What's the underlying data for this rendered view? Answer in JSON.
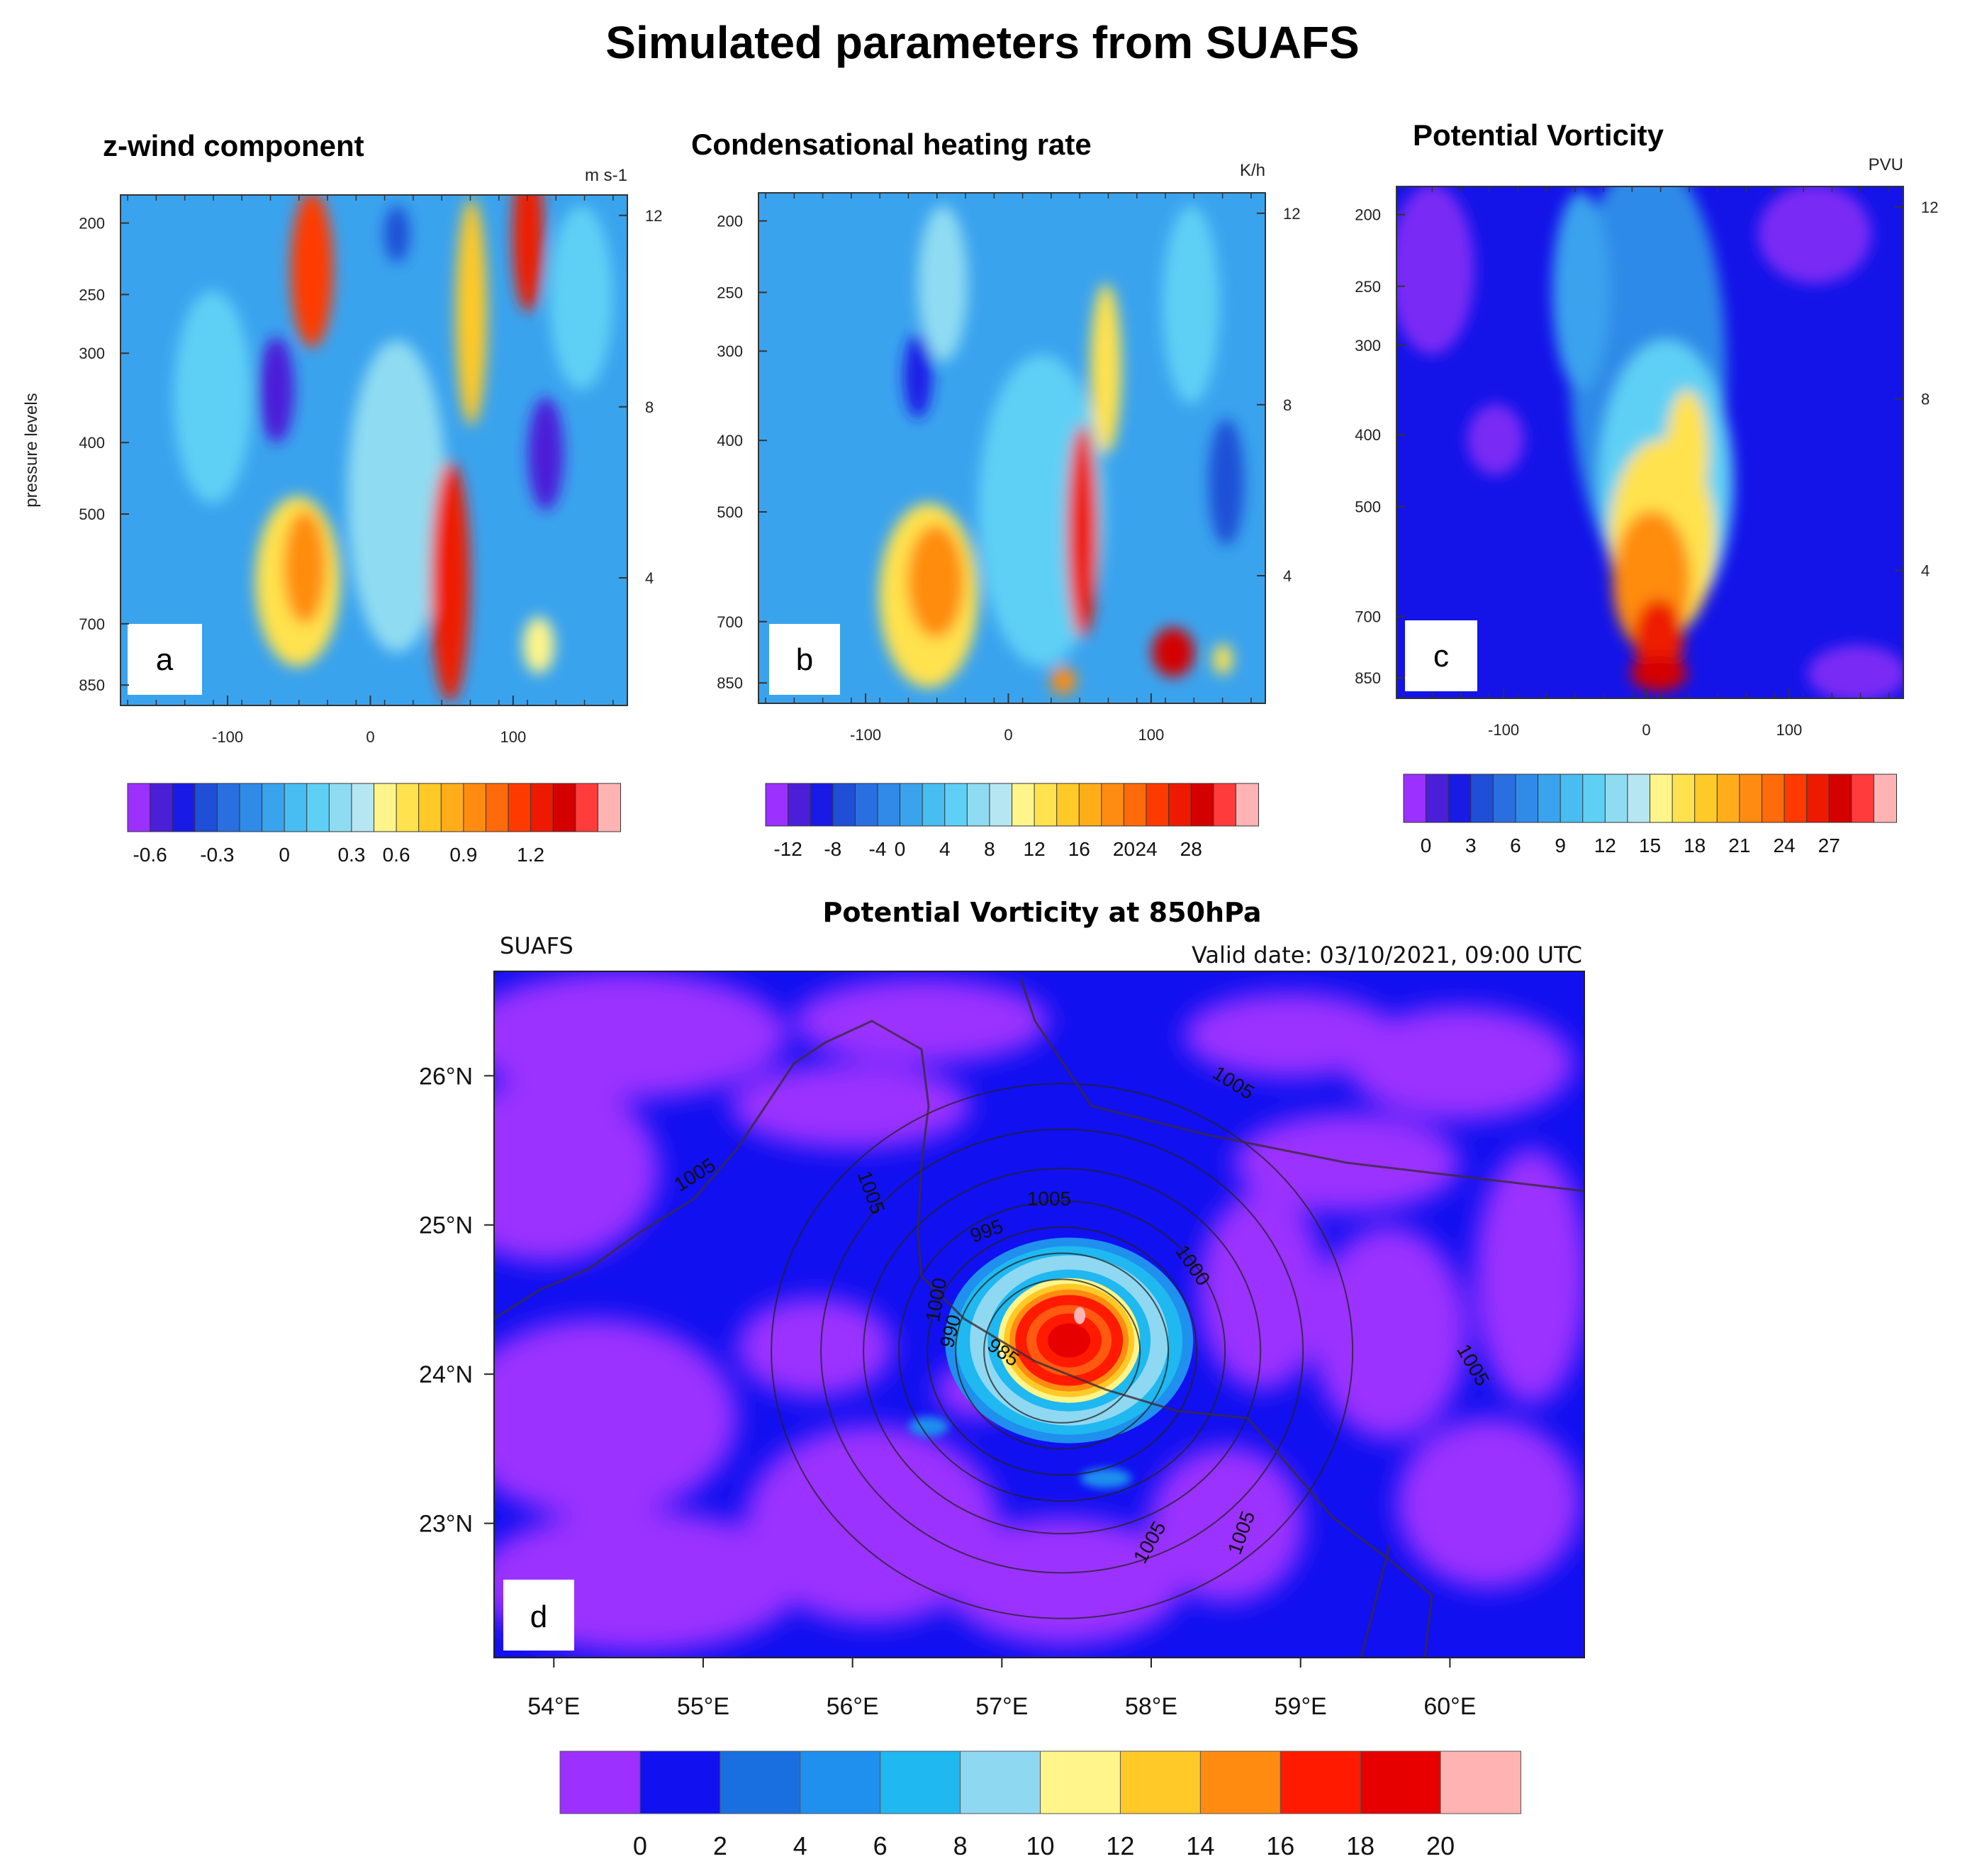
{
  "figure_title": "Simulated parameters from SUAFS",
  "chart_data": [
    {
      "type": "heatmap",
      "panel_letter": "a",
      "title": "z-wind component",
      "units": "m s-1",
      "ylabel": "pressure levels",
      "x_ticks": [
        -100,
        0,
        100
      ],
      "xlim": [
        -175,
        180
      ],
      "y_ticks": [
        "200",
        "250",
        "300",
        "400",
        "500",
        "700",
        "850"
      ],
      "right_ticks": [
        "12",
        "8",
        "4"
      ],
      "colorbar_labels": [
        "-0.6",
        "-0.3",
        "0",
        "0.3",
        "0.6",
        "0.9",
        "1.2"
      ],
      "colorbar_colors": [
        "#9b30ff",
        "#4b1fd8",
        "#1a1ae6",
        "#1e4fd6",
        "#2a6fe0",
        "#2f8ae8",
        "#3aa3ee",
        "#48bdf2",
        "#5fd0f5",
        "#8fdcf2",
        "#b7e6f3",
        "#fff58a",
        "#ffe24d",
        "#ffc928",
        "#ffae1a",
        "#ff8c10",
        "#ff6a0a",
        "#ff3a00",
        "#ee1a00",
        "#d40000",
        "#ff3b3b",
        "#ffb3b3"
      ]
    },
    {
      "type": "heatmap",
      "panel_letter": "b",
      "title": "Condensational  heating rate",
      "units": "K/h",
      "x_ticks": [
        -100,
        0,
        100
      ],
      "xlim": [
        -175,
        180
      ],
      "y_ticks": [
        "200",
        "250",
        "300",
        "400",
        "500",
        "700",
        "850"
      ],
      "right_ticks": [
        "12",
        "8",
        "4"
      ],
      "colorbar_labels": [
        "-12",
        "-8",
        "-4",
        "0",
        "4",
        "8",
        "12",
        "16",
        "20",
        "24",
        "28"
      ],
      "colorbar_colors": [
        "#9b30ff",
        "#4b1fd8",
        "#1a1ae6",
        "#1e4fd6",
        "#2a6fe0",
        "#2f8ae8",
        "#3aa3ee",
        "#48bdf2",
        "#5fd0f5",
        "#8fdcf2",
        "#b7e6f3",
        "#fff58a",
        "#ffe24d",
        "#ffc928",
        "#ffae1a",
        "#ff8c10",
        "#ff6a0a",
        "#ff3a00",
        "#ee1a00",
        "#d40000",
        "#ff3b3b",
        "#ffb3b3"
      ]
    },
    {
      "type": "heatmap",
      "panel_letter": "c",
      "title": "Potential Vorticity",
      "units": "PVU",
      "x_ticks": [
        -100,
        0,
        100
      ],
      "xlim": [
        -175,
        180
      ],
      "y_ticks": [
        "200",
        "250",
        "300",
        "400",
        "500",
        "700",
        "850"
      ],
      "right_ticks": [
        "12",
        "8",
        "4"
      ],
      "colorbar_labels": [
        "0",
        "3",
        "6",
        "9",
        "12",
        "15",
        "18",
        "21",
        "24",
        "27"
      ],
      "colorbar_colors": [
        "#9b30ff",
        "#4b1fd8",
        "#1a1ae6",
        "#1e4fd6",
        "#2a6fe0",
        "#2f8ae8",
        "#3aa3ee",
        "#48bdf2",
        "#5fd0f5",
        "#8fdcf2",
        "#b7e6f3",
        "#fff58a",
        "#ffe24d",
        "#ffc928",
        "#ffae1a",
        "#ff8c10",
        "#ff6a0a",
        "#ff3a00",
        "#ee1a00",
        "#d40000",
        "#ff3b3b",
        "#ffb3b3"
      ]
    },
    {
      "type": "heatmap",
      "panel_letter": "d",
      "title": "Potential Vorticity at 850hPa",
      "model_label": "SUAFS",
      "valid_date": "Valid date: 03/10/2021, 09:00 UTC",
      "lon_ticks": [
        "54°E",
        "55°E",
        "56°E",
        "57°E",
        "58°E",
        "59°E",
        "60°E"
      ],
      "lon_values": [
        54,
        55,
        56,
        57,
        58,
        59,
        60
      ],
      "lat_ticks": [
        "26°N",
        "25°N",
        "24°N",
        "23°N"
      ],
      "lat_values": [
        26,
        25,
        24,
        23
      ],
      "xlim": [
        53.6,
        60.9
      ],
      "ylim": [
        22.1,
        26.7
      ],
      "cyclone_center": [
        57.45,
        24.25
      ],
      "contour_labels": [
        "1005",
        "1005",
        "1005",
        "1005",
        "1005",
        "1005",
        "1005",
        "1000",
        "1000",
        "995",
        "990",
        "985"
      ],
      "colorbar_labels": [
        "0",
        "2",
        "4",
        "6",
        "8",
        "10",
        "12",
        "14",
        "16",
        "18",
        "20"
      ],
      "colorbar_colors": [
        "#9b30ff",
        "#1010f0",
        "#1a6fe0",
        "#1f90ee",
        "#1fb8f0",
        "#8fd8f2",
        "#fff58a",
        "#ffc928",
        "#ff8c10",
        "#ff1a00",
        "#e60000",
        "#ffb3b3"
      ]
    }
  ]
}
